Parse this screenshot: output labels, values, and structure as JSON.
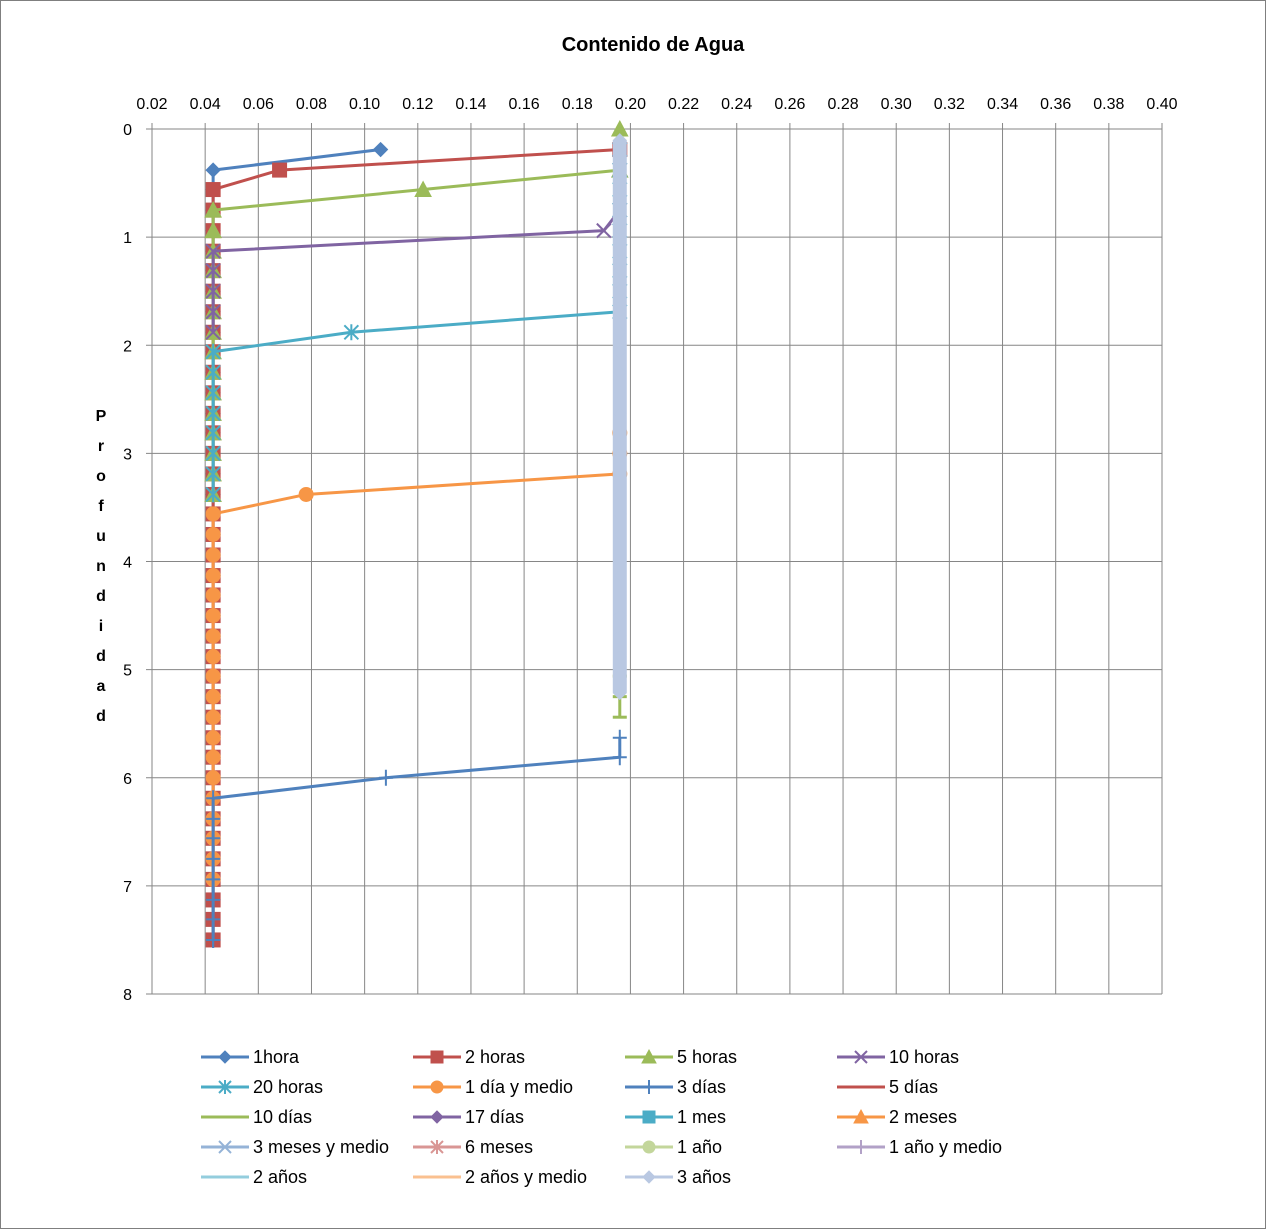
{
  "chart_data": {
    "type": "line",
    "title": "Contenido de Agua",
    "xlabel": "",
    "ylabel": "Profundidad",
    "x_axis_position": "top",
    "y_axis_inverted": true,
    "xlim": [
      0.02,
      0.4
    ],
    "ylim": [
      0,
      8
    ],
    "x_ticks": [
      "0.02",
      "0.04",
      "0.06",
      "0.08",
      "0.10",
      "0.12",
      "0.14",
      "0.16",
      "0.18",
      "0.20",
      "0.22",
      "0.24",
      "0.26",
      "0.28",
      "0.30",
      "0.32",
      "0.34",
      "0.36",
      "0.38",
      "0.40"
    ],
    "y_ticks": [
      "0",
      "1",
      "2",
      "3",
      "4",
      "5",
      "6",
      "7",
      "8"
    ],
    "grid": "vertical-and-horizontal",
    "legend_position": "bottom",
    "series": [
      {
        "name": "1hora",
        "color": "#4F81BD",
        "marker": "diamond",
        "x": [
          0.106,
          0.043,
          0.043,
          0.043,
          0.043,
          0.043,
          0.043,
          0.043,
          0.043,
          0.043,
          0.043,
          0.043,
          0.043,
          0.043,
          0.043,
          0.043,
          0.043,
          0.043,
          0.043,
          0.043,
          0.043,
          0.043,
          0.043,
          0.043,
          0.043,
          0.043,
          0.043,
          0.043,
          0.043,
          0.043,
          0.043,
          0.043,
          0.043,
          0.043,
          0.043,
          0.043,
          0.043,
          0.043,
          0.043
        ],
        "y": [
          0.19,
          0.38,
          0.56,
          0.75,
          0.94,
          1.13,
          1.31,
          1.5,
          1.69,
          1.88,
          2.06,
          2.25,
          2.44,
          2.63,
          2.81,
          3.0,
          3.19,
          3.38,
          3.56,
          3.75,
          3.94,
          4.13,
          4.31,
          4.5,
          4.69,
          4.88,
          5.06,
          5.25,
          5.44,
          5.63,
          5.81,
          6.0,
          6.19,
          6.38,
          6.56,
          6.75,
          6.94,
          7.13,
          7.5
        ]
      },
      {
        "name": "2 horas",
        "color": "#C0504D",
        "marker": "square",
        "x": [
          0.196,
          0.068,
          0.043,
          0.043,
          0.043,
          0.043,
          0.043,
          0.043,
          0.043,
          0.043,
          0.043,
          0.043,
          0.043,
          0.043,
          0.043,
          0.043,
          0.043,
          0.043,
          0.043,
          0.043,
          0.043,
          0.043,
          0.043,
          0.043,
          0.043,
          0.043,
          0.043,
          0.043,
          0.043,
          0.043,
          0.043,
          0.043,
          0.043,
          0.043,
          0.043,
          0.043,
          0.043,
          0.043,
          0.043,
          0.043
        ],
        "y": [
          0.19,
          0.38,
          0.56,
          0.75,
          0.94,
          1.13,
          1.31,
          1.5,
          1.69,
          1.88,
          2.06,
          2.25,
          2.44,
          2.63,
          2.81,
          3.0,
          3.19,
          3.38,
          3.56,
          3.75,
          3.94,
          4.13,
          4.31,
          4.5,
          4.69,
          4.88,
          5.06,
          5.25,
          5.44,
          5.63,
          5.81,
          6.0,
          6.19,
          6.38,
          6.56,
          6.75,
          6.94,
          7.13,
          7.31,
          7.5
        ]
      },
      {
        "name": "5 horas",
        "color": "#9BBB59",
        "marker": "triangle",
        "x": [
          0.196,
          0.196,
          0.122,
          0.043,
          0.043,
          0.043,
          0.043,
          0.043,
          0.043,
          0.043,
          0.043,
          0.043,
          0.043,
          0.043,
          0.043,
          0.043,
          0.043,
          0.043
        ],
        "y": [
          0.0,
          0.38,
          0.56,
          0.75,
          0.94,
          1.13,
          1.31,
          1.5,
          1.69,
          1.88,
          2.06,
          2.25,
          2.44,
          2.63,
          2.81,
          3.0,
          3.19,
          3.38
        ]
      },
      {
        "name": "10 horas",
        "color": "#8064A2",
        "marker": "x",
        "x": [
          0.196,
          0.196,
          0.196,
          0.19,
          0.043,
          0.043,
          0.043,
          0.043,
          0.043
        ],
        "y": [
          0.19,
          0.38,
          0.75,
          0.94,
          1.13,
          1.31,
          1.5,
          1.69,
          1.88
        ]
      },
      {
        "name": "20 horas",
        "color": "#4BACC6",
        "marker": "star",
        "x": [
          0.196,
          0.196,
          0.196,
          0.196,
          0.196,
          0.196,
          0.196,
          0.196,
          0.196,
          0.095,
          0.043,
          0.043,
          0.043,
          0.043,
          0.043,
          0.043,
          0.043,
          0.043
        ],
        "y": [
          0.19,
          0.38,
          0.56,
          0.75,
          0.94,
          1.13,
          1.31,
          1.5,
          1.69,
          1.88,
          2.06,
          2.25,
          2.44,
          2.63,
          2.81,
          3.0,
          3.19,
          3.38
        ]
      },
      {
        "name": "1 día y medio",
        "color": "#F79646",
        "marker": "circle",
        "x": [
          0.196,
          0.196,
          0.196,
          0.078,
          0.043,
          0.043,
          0.043,
          0.043,
          0.043,
          0.043,
          0.043,
          0.043,
          0.043,
          0.043,
          0.043,
          0.043,
          0.043,
          0.043,
          0.043,
          0.043,
          0.043,
          0.043,
          0.043
        ],
        "y": [
          2.81,
          3.0,
          3.19,
          3.38,
          3.56,
          3.75,
          3.94,
          4.13,
          4.31,
          4.5,
          4.69,
          4.88,
          5.06,
          5.25,
          5.44,
          5.63,
          5.81,
          6.0,
          6.19,
          6.38,
          6.56,
          6.75,
          6.94
        ]
      },
      {
        "name": "3 días",
        "color": "#4F81BD",
        "marker": "plus",
        "x": [
          0.196,
          0.196,
          0.108,
          0.043,
          0.043,
          0.043,
          0.043,
          0.043,
          0.043,
          0.043,
          0.043,
          0.043
        ],
        "y": [
          5.63,
          5.81,
          6.0,
          6.19,
          6.38,
          6.56,
          6.75,
          6.94,
          7.13,
          7.31,
          7.5,
          7.5
        ]
      },
      {
        "name": "5 días",
        "color": "#C0504D",
        "marker": "none",
        "x": [],
        "y": []
      },
      {
        "name": "10 días",
        "color": "#9BBB59",
        "marker": "dash",
        "x": [
          0.196,
          0.196,
          0.196
        ],
        "y": [
          5.06,
          5.25,
          5.44
        ]
      },
      {
        "name": "17 días",
        "color": "#8064A2",
        "marker": "diamond",
        "x": [],
        "y": []
      },
      {
        "name": "1 mes",
        "color": "#4BACC6",
        "marker": "square",
        "x": [],
        "y": []
      },
      {
        "name": "2 meses",
        "color": "#F79646",
        "marker": "triangle",
        "x": [],
        "y": []
      },
      {
        "name": "3 meses y medio",
        "color": "#95B3D7",
        "marker": "x",
        "x": [],
        "y": []
      },
      {
        "name": "6 meses",
        "color": "#D99694",
        "marker": "star",
        "x": [],
        "y": []
      },
      {
        "name": "1 año",
        "color": "#C3D69B",
        "marker": "circle",
        "x": [],
        "y": []
      },
      {
        "name": "1 año y medio",
        "color": "#B2A1C7",
        "marker": "plus",
        "x": [],
        "y": []
      },
      {
        "name": "2 años",
        "color": "#93CDDD",
        "marker": "none",
        "x": [],
        "y": []
      },
      {
        "name": "2 años y medio",
        "color": "#FAC090",
        "marker": "none",
        "x": [],
        "y": []
      },
      {
        "name": "3 años",
        "color": "#B9C8E2",
        "marker": "diamond",
        "x": [
          0.196,
          0.196,
          0.196,
          0.196,
          0.196,
          0.196,
          0.196,
          0.196,
          0.196,
          0.196,
          0.196,
          0.196,
          0.196,
          0.196,
          0.196,
          0.196,
          0.196,
          0.196,
          0.196,
          0.196,
          0.196,
          0.196,
          0.196,
          0.196,
          0.196,
          0.196,
          0.196,
          0.196,
          0.196
        ],
        "y": [
          0.1,
          0.19,
          0.38,
          0.56,
          0.75,
          0.94,
          1.13,
          1.31,
          1.5,
          1.69,
          1.88,
          2.06,
          2.25,
          2.44,
          2.63,
          2.81,
          3.0,
          3.19,
          3.38,
          3.56,
          3.75,
          3.94,
          4.13,
          4.31,
          4.5,
          4.69,
          4.88,
          5.06,
          5.22
        ]
      }
    ]
  }
}
